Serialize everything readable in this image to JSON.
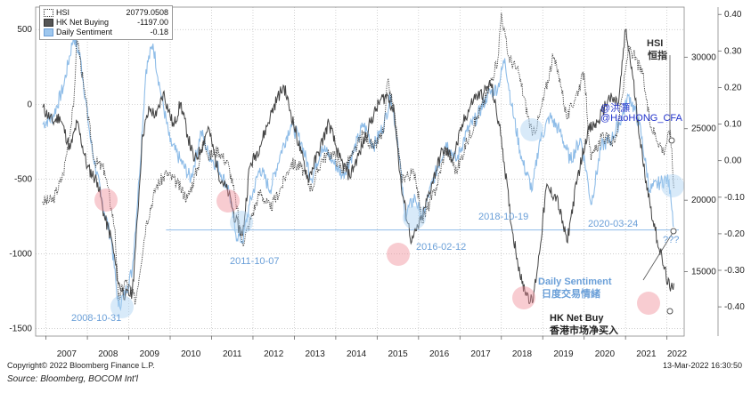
{
  "legend": [
    {
      "name": "HSI",
      "value": "20779.0508",
      "color": "#ffffff",
      "border": "#333333"
    },
    {
      "name": "HK Net Buying",
      "value": "-1197.00",
      "color": "#555555",
      "border": "#333333"
    },
    {
      "name": "Daily Sentiment",
      "value": "-0.18",
      "color": "#9ec7ee",
      "border": "#6d9fd6"
    }
  ],
  "footer": {
    "copyright": "Copyright© 2022 Bloomberg Finance L.P.",
    "timestamp": "13-Mar-2022 16:30:50",
    "source": "Source: Bloomberg, BOCOM Int'l"
  },
  "annotations": {
    "hsi_title": "HSI",
    "hsi_cn": "恒指",
    "handle1": "@洪灝",
    "handle2": "@HaoHONG_CFA",
    "daily_sent_en": "Daily Sentiment",
    "daily_sent_cn": "日度交易情緒",
    "net_buy_en": "HK Net Buy",
    "net_buy_cn": "香港市场净买入",
    "qqq": "???",
    "d1": "2008-10-31",
    "d2": "2011-10-07",
    "d3": "2016-02-12",
    "d4": "2018-10-19",
    "d5": "2020-03-24"
  },
  "colors": {
    "hsi": "#333333",
    "net_buying": "#444444",
    "sentiment": "#8fbde8",
    "annotation_blue": "#6a9fd8",
    "pink": "#f08e98",
    "lightblue": "#a8d0f2"
  },
  "chart_data": {
    "type": "line",
    "x_axis": {
      "type": "time",
      "tick_labels": [
        "2007",
        "2008",
        "2009",
        "2010",
        "2011",
        "2012",
        "2013",
        "2014",
        "2015",
        "2016",
        "2017",
        "2018",
        "2019",
        "2020",
        "2021",
        "2022"
      ]
    },
    "y_left": {
      "label": "",
      "range": [
        -1550,
        650
      ],
      "ticks": [
        500,
        0,
        -500,
        -1000,
        -1500
      ]
    },
    "y_right_hsi": {
      "label": "",
      "range": [
        10500,
        33500
      ],
      "ticks": [
        30000,
        25000,
        20000,
        15000
      ]
    },
    "y_right_sentiment": {
      "label": "",
      "range": [
        -0.48,
        0.42
      ],
      "ticks": [
        0.4,
        0.3,
        0.2,
        0.1,
        0.0,
        -0.1,
        -0.2,
        -0.3,
        -0.4
      ]
    },
    "reference_line": {
      "axis": "left",
      "value": -840
    },
    "series": [
      {
        "name": "HSI",
        "axis": "right_hsi",
        "style": "dotted",
        "points": [
          [
            "2006-12",
            19900
          ],
          [
            "2007-03",
            20000
          ],
          [
            "2007-06",
            21800
          ],
          [
            "2007-09",
            26500
          ],
          [
            "2007-10",
            31600
          ],
          [
            "2007-12",
            27800
          ],
          [
            "2008-03",
            22800
          ],
          [
            "2008-06",
            22100
          ],
          [
            "2008-09",
            18000
          ],
          [
            "2008-10",
            13000
          ],
          [
            "2008-12",
            14400
          ],
          [
            "2009-03",
            13000
          ],
          [
            "2009-06",
            18300
          ],
          [
            "2009-09",
            21000
          ],
          [
            "2009-12",
            21900
          ],
          [
            "2010-03",
            21200
          ],
          [
            "2010-06",
            20100
          ],
          [
            "2010-09",
            22300
          ],
          [
            "2010-11",
            24500
          ],
          [
            "2010-12",
            23000
          ],
          [
            "2011-03",
            23500
          ],
          [
            "2011-06",
            22400
          ],
          [
            "2011-08",
            20000
          ],
          [
            "2011-10",
            17000
          ],
          [
            "2011-12",
            18400
          ],
          [
            "2012-03",
            20600
          ],
          [
            "2012-06",
            19400
          ],
          [
            "2012-09",
            20800
          ],
          [
            "2012-12",
            22600
          ],
          [
            "2013-03",
            22300
          ],
          [
            "2013-06",
            20800
          ],
          [
            "2013-09",
            22900
          ],
          [
            "2013-12",
            23300
          ],
          [
            "2014-03",
            22100
          ],
          [
            "2014-06",
            23200
          ],
          [
            "2014-09",
            24700
          ],
          [
            "2014-12",
            23600
          ],
          [
            "2015-03",
            24900
          ],
          [
            "2015-04",
            28300
          ],
          [
            "2015-06",
            26200
          ],
          [
            "2015-08",
            21600
          ],
          [
            "2015-12",
            21900
          ],
          [
            "2016-02",
            18500
          ],
          [
            "2016-06",
            20800
          ],
          [
            "2016-09",
            23700
          ],
          [
            "2016-12",
            22000
          ],
          [
            "2017-03",
            24100
          ],
          [
            "2017-06",
            25800
          ],
          [
            "2017-09",
            27500
          ],
          [
            "2017-12",
            29900
          ],
          [
            "2018-01",
            33100
          ],
          [
            "2018-03",
            30100
          ],
          [
            "2018-06",
            28900
          ],
          [
            "2018-10",
            24500
          ],
          [
            "2018-12",
            25800
          ],
          [
            "2019-04",
            30000
          ],
          [
            "2019-06",
            28500
          ],
          [
            "2019-08",
            25700
          ],
          [
            "2019-12",
            28200
          ],
          [
            "2020-01",
            28900
          ],
          [
            "2020-03",
            22800
          ],
          [
            "2020-06",
            24400
          ],
          [
            "2020-10",
            24100
          ],
          [
            "2020-12",
            27200
          ],
          [
            "2021-02",
            30800
          ],
          [
            "2021-06",
            28800
          ],
          [
            "2021-08",
            25400
          ],
          [
            "2021-12",
            23400
          ],
          [
            "2022-02",
            24900
          ],
          [
            "2022-03",
            20800
          ]
        ]
      },
      {
        "name": "HK Net Buying",
        "axis": "left",
        "style": "solid",
        "points": [
          [
            "2006-12",
            -20
          ],
          [
            "2007-03",
            -120
          ],
          [
            "2007-05",
            -80
          ],
          [
            "2007-08",
            -300
          ],
          [
            "2007-10",
            -120
          ],
          [
            "2008-01",
            -420
          ],
          [
            "2008-04",
            -520
          ],
          [
            "2008-06",
            -760
          ],
          [
            "2008-08",
            -900
          ],
          [
            "2008-10",
            -1200
          ],
          [
            "2008-12",
            -1280
          ],
          [
            "2009-02",
            -1260
          ],
          [
            "2009-03",
            -950
          ],
          [
            "2009-05",
            -200
          ],
          [
            "2009-07",
            -30
          ],
          [
            "2009-09",
            -80
          ],
          [
            "2009-11",
            80
          ],
          [
            "2010-02",
            -150
          ],
          [
            "2010-04",
            10
          ],
          [
            "2010-06",
            -200
          ],
          [
            "2010-08",
            -380
          ],
          [
            "2010-10",
            -300
          ],
          [
            "2010-12",
            -150
          ],
          [
            "2011-03",
            -460
          ],
          [
            "2011-06",
            -600
          ],
          [
            "2011-08",
            -780
          ],
          [
            "2011-10",
            -880
          ],
          [
            "2011-12",
            -420
          ],
          [
            "2012-03",
            -280
          ],
          [
            "2012-06",
            -80
          ],
          [
            "2012-08",
            40
          ],
          [
            "2012-10",
            120
          ],
          [
            "2012-12",
            -60
          ],
          [
            "2013-03",
            -330
          ],
          [
            "2013-05",
            -500
          ],
          [
            "2013-08",
            -320
          ],
          [
            "2013-11",
            -120
          ],
          [
            "2014-02",
            -360
          ],
          [
            "2014-05",
            -480
          ],
          [
            "2014-08",
            -320
          ],
          [
            "2014-11",
            -120
          ],
          [
            "2015-02",
            30
          ],
          [
            "2015-04",
            60
          ],
          [
            "2015-06",
            -60
          ],
          [
            "2015-08",
            -560
          ],
          [
            "2015-11",
            -920
          ],
          [
            "2016-02",
            -760
          ],
          [
            "2016-05",
            -520
          ],
          [
            "2016-08",
            -300
          ],
          [
            "2016-11",
            -360
          ],
          [
            "2017-02",
            -120
          ],
          [
            "2017-05",
            40
          ],
          [
            "2017-08",
            80
          ],
          [
            "2017-10",
            140
          ],
          [
            "2018-01",
            -220
          ],
          [
            "2018-04",
            -820
          ],
          [
            "2018-07",
            -1200
          ],
          [
            "2018-10",
            -1330
          ],
          [
            "2018-12",
            -1000
          ],
          [
            "2019-02",
            -560
          ],
          [
            "2019-05",
            -620
          ],
          [
            "2019-08",
            -920
          ],
          [
            "2019-11",
            -500
          ],
          [
            "2020-02",
            -180
          ],
          [
            "2020-05",
            -120
          ],
          [
            "2020-08",
            40
          ],
          [
            "2020-11",
            10
          ],
          [
            "2021-01",
            500
          ],
          [
            "2021-03",
            200
          ],
          [
            "2021-06",
            -380
          ],
          [
            "2021-09",
            -780
          ],
          [
            "2021-12",
            -1080
          ],
          [
            "2022-02",
            -1250
          ],
          [
            "2022-03",
            -1197
          ]
        ]
      },
      {
        "name": "Daily Sentiment",
        "axis": "right_sentiment",
        "style": "solid",
        "points": [
          [
            "2006-12",
            0.1
          ],
          [
            "2007-03",
            0.12
          ],
          [
            "2007-06",
            0.2
          ],
          [
            "2007-09",
            0.34
          ],
          [
            "2007-11",
            0.28
          ],
          [
            "2008-02",
            0.05
          ],
          [
            "2008-05",
            -0.1
          ],
          [
            "2008-08",
            -0.22
          ],
          [
            "2008-10",
            -0.4
          ],
          [
            "2008-12",
            -0.36
          ],
          [
            "2009-02",
            -0.3
          ],
          [
            "2009-04",
            -0.05
          ],
          [
            "2009-06",
            0.25
          ],
          [
            "2009-08",
            0.32
          ],
          [
            "2009-10",
            0.2
          ],
          [
            "2010-01",
            0.05
          ],
          [
            "2010-04",
            0.0
          ],
          [
            "2010-07",
            -0.05
          ],
          [
            "2010-10",
            0.08
          ],
          [
            "2010-12",
            0.02
          ],
          [
            "2011-03",
            -0.02
          ],
          [
            "2011-06",
            -0.08
          ],
          [
            "2011-08",
            -0.2
          ],
          [
            "2011-10",
            -0.22
          ],
          [
            "2011-12",
            -0.12
          ],
          [
            "2012-03",
            -0.02
          ],
          [
            "2012-06",
            -0.08
          ],
          [
            "2012-09",
            0.02
          ],
          [
            "2012-12",
            0.1
          ],
          [
            "2013-03",
            0.05
          ],
          [
            "2013-06",
            -0.05
          ],
          [
            "2013-09",
            0.04
          ],
          [
            "2013-12",
            0.0
          ],
          [
            "2014-03",
            -0.04
          ],
          [
            "2014-06",
            0.02
          ],
          [
            "2014-09",
            0.1
          ],
          [
            "2014-12",
            0.04
          ],
          [
            "2015-03",
            0.1
          ],
          [
            "2015-05",
            0.18
          ],
          [
            "2015-07",
            0.05
          ],
          [
            "2015-09",
            -0.15
          ],
          [
            "2015-12",
            -0.1
          ],
          [
            "2016-02",
            -0.16
          ],
          [
            "2016-05",
            -0.06
          ],
          [
            "2016-09",
            0.05
          ],
          [
            "2016-12",
            0.0
          ],
          [
            "2017-03",
            0.08
          ],
          [
            "2017-06",
            0.12
          ],
          [
            "2017-09",
            0.18
          ],
          [
            "2017-12",
            0.2
          ],
          [
            "2018-02",
            0.28
          ],
          [
            "2018-04",
            0.15
          ],
          [
            "2018-07",
            0.0
          ],
          [
            "2018-10",
            -0.08
          ],
          [
            "2018-12",
            0.05
          ],
          [
            "2019-03",
            0.12
          ],
          [
            "2019-06",
            0.08
          ],
          [
            "2019-09",
            0.0
          ],
          [
            "2019-12",
            0.06
          ],
          [
            "2020-02",
            -0.05
          ],
          [
            "2020-03",
            -0.12
          ],
          [
            "2020-06",
            0.04
          ],
          [
            "2020-09",
            0.06
          ],
          [
            "2020-12",
            0.12
          ],
          [
            "2021-02",
            0.18
          ],
          [
            "2021-05",
            0.1
          ],
          [
            "2021-08",
            -0.08
          ],
          [
            "2021-11",
            -0.06
          ],
          [
            "2022-01",
            -0.05
          ],
          [
            "2022-02",
            -0.08
          ],
          [
            "2022-03",
            -0.18
          ]
        ]
      }
    ]
  }
}
